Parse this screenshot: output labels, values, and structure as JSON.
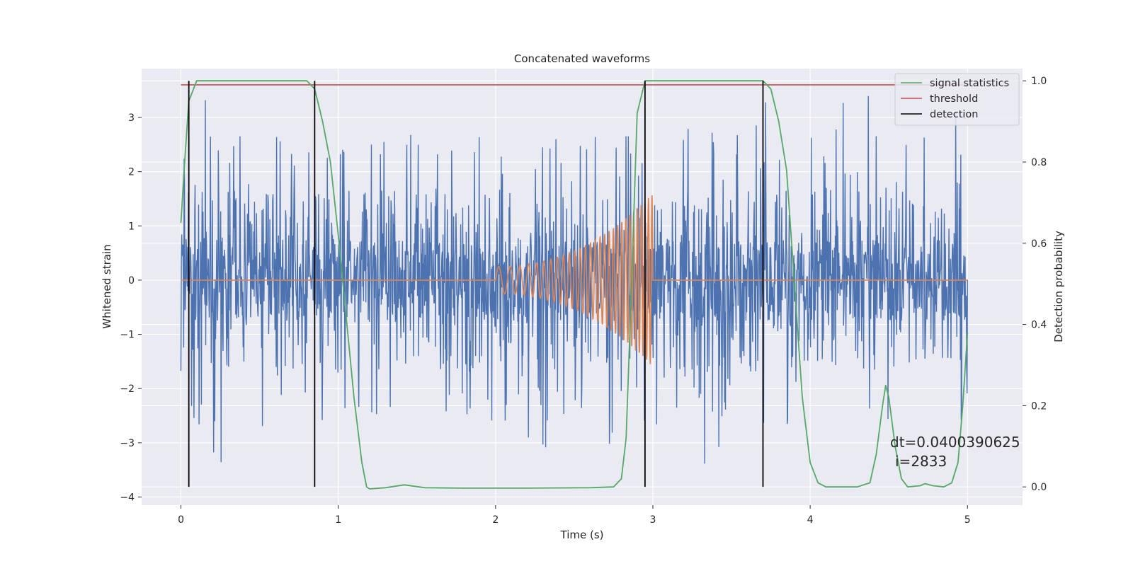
{
  "chart_data": {
    "type": "line",
    "title": "Concatenated waveforms",
    "xlabel": "Time (s)",
    "ylabel": "Whitened strain",
    "y2label": "Detection probability",
    "xlim": [
      -0.25,
      5.35
    ],
    "ylim": [
      -4.15,
      3.9
    ],
    "y2lim": [
      -0.045,
      1.03
    ],
    "xticks": [
      0,
      1,
      2,
      3,
      4,
      5
    ],
    "yticks": [
      -4,
      -3,
      -2,
      -1,
      0,
      1,
      2,
      3
    ],
    "y2ticks": [
      0.0,
      0.2,
      0.4,
      0.6,
      0.8,
      1.0
    ],
    "xtick_labels": [
      "0",
      "1",
      "2",
      "3",
      "4",
      "5"
    ],
    "ytick_labels": [
      "−4",
      "−3",
      "−2",
      "−1",
      "0",
      "1",
      "2",
      "3"
    ],
    "y2tick_labels": [
      "0.0",
      "0.2",
      "0.4",
      "0.6",
      "0.8",
      "1.0"
    ],
    "grid": true,
    "legend_position": "top-right",
    "legend": [
      "signal statistics",
      "threshold",
      "detection"
    ],
    "colors": {
      "noise": "#4c72b0",
      "injection": "#dd8452",
      "statistics": "#55a868",
      "threshold": "#c44e52",
      "detection": "#000000",
      "axes_bg": "#eaeaf2",
      "grid": "#ffffff"
    },
    "series": [
      {
        "name": "signal statistics",
        "axis": "right",
        "x": [
          0.0,
          0.02,
          0.05,
          0.1,
          0.2,
          0.7,
          0.8,
          0.85,
          0.9,
          0.95,
          1.0,
          1.05,
          1.1,
          1.15,
          1.18,
          1.2,
          1.3,
          1.42,
          1.55,
          1.8,
          2.2,
          2.6,
          2.75,
          2.8,
          2.83,
          2.86,
          2.9,
          2.95,
          3.0,
          3.5,
          3.7,
          3.75,
          3.8,
          3.85,
          3.9,
          3.95,
          4.0,
          4.05,
          4.1,
          4.3,
          4.38,
          4.42,
          4.46,
          4.48,
          4.5,
          4.54,
          4.58,
          4.62,
          4.7,
          4.73,
          4.78,
          4.85,
          4.9,
          4.94,
          4.97,
          5.0
        ],
        "y": [
          0.65,
          0.78,
          0.95,
          1.0,
          1.0,
          1.0,
          1.0,
          0.98,
          0.9,
          0.8,
          0.62,
          0.42,
          0.22,
          0.06,
          0.0,
          -0.005,
          -0.002,
          0.005,
          -0.002,
          -0.003,
          -0.003,
          -0.002,
          0.0,
          0.02,
          0.12,
          0.45,
          0.92,
          1.0,
          1.0,
          1.0,
          1.0,
          0.98,
          0.9,
          0.78,
          0.5,
          0.22,
          0.06,
          0.01,
          0.0,
          0.0,
          0.01,
          0.08,
          0.2,
          0.25,
          0.22,
          0.1,
          0.02,
          0.0,
          0.003,
          0.008,
          0.003,
          0.0,
          0.01,
          0.06,
          0.2,
          0.38
        ]
      },
      {
        "name": "threshold",
        "axis": "right",
        "x": [
          0.0,
          5.0
        ],
        "y": [
          0.99,
          0.99
        ]
      }
    ],
    "detections": [
      0.05,
      0.85,
      2.95,
      3.7
    ],
    "noise": {
      "t_start": 0.0,
      "t_end": 5.0,
      "samples": 2000,
      "band_amplitude": 0.75,
      "seed": 7
    },
    "injection": {
      "t_start": 2.0,
      "t_end": 3.0,
      "amp_start": 0.25,
      "amp_end": 1.6,
      "freq_start": 12,
      "freq_end": 45
    },
    "annotations": [
      "dt=0.0400390625",
      "i=2833"
    ]
  }
}
